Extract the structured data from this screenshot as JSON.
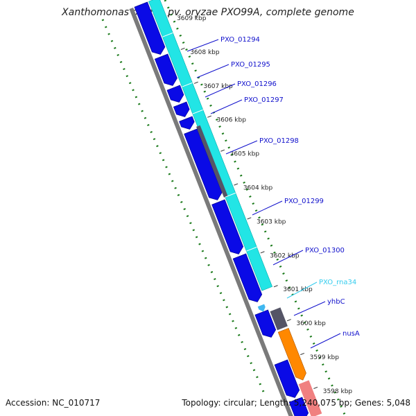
{
  "title": "Xanthomonas oryzae pv. oryzae PXO99A, complete genome",
  "accession": "Accession: NC_010717",
  "topology": "Topology: circular; Length: 5,240,075 bp; Genes: 5,048",
  "ticks": [
    {
      "label": "3609 kbp",
      "kbp": 3609
    },
    {
      "label": "3608 kbp",
      "kbp": 3608
    },
    {
      "label": "3607 kbp",
      "kbp": 3607
    },
    {
      "label": "3606 kbp",
      "kbp": 3606
    },
    {
      "label": "3605 kbp",
      "kbp": 3605
    },
    {
      "label": "3604 kbp",
      "kbp": 3604
    },
    {
      "label": "3603 kbp",
      "kbp": 3603
    },
    {
      "label": "3602 kbp",
      "kbp": 3602
    },
    {
      "label": "3601 kbp",
      "kbp": 3601
    },
    {
      "label": "3600 kbp",
      "kbp": 3600
    },
    {
      "label": "3599 kbp",
      "kbp": 3599
    },
    {
      "label": "3598 kbp",
      "kbp": 3598
    }
  ],
  "genes": [
    {
      "name": "PXO_01294",
      "color": "#0000cc"
    },
    {
      "name": "PXO_01295",
      "color": "#0000cc"
    },
    {
      "name": "PXO_01296",
      "color": "#0000cc"
    },
    {
      "name": "PXO_01297",
      "color": "#0000cc"
    },
    {
      "name": "PXO_01298",
      "color": "#0000cc"
    },
    {
      "name": "PXO_01299",
      "color": "#0000cc"
    },
    {
      "name": "PXO_01300",
      "color": "#0000cc"
    },
    {
      "name": "PXO_rna34",
      "color": "#33ccee"
    },
    {
      "name": "yhbC",
      "color": "#0000cc"
    },
    {
      "name": "nusA",
      "color": "#0000cc"
    }
  ],
  "colors": {
    "cds": "#0a0ae6",
    "cds_feature": "#22e5e5",
    "rna": "#40b8f0",
    "grey_feature": "#555566",
    "orange_feature": "#ff8800",
    "pink_feature": "#f08080",
    "backbone": "#7a7a7a",
    "gc_ticks": "#1a7a1a"
  }
}
